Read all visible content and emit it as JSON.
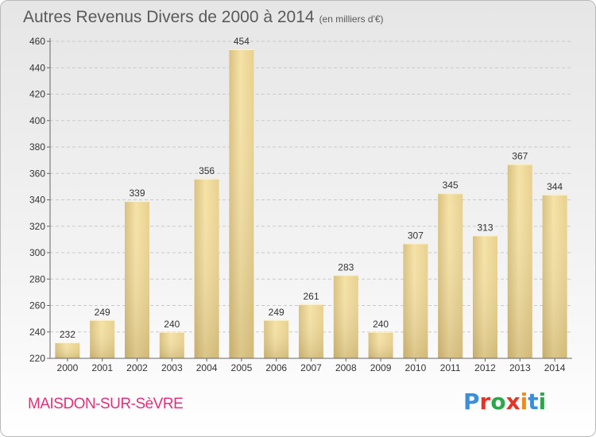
{
  "header": {
    "title": "Autres Revenus Divers de 2000 à 2014",
    "unit": "(en milliers d'€)"
  },
  "footer": {
    "city": "MAISDON-SUR-SèVRE",
    "logo": "Proxiti"
  },
  "colors": {
    "bar_light": "#f3dfa0",
    "bar_dark": "#c8ae6c",
    "city": "#e0307a",
    "grid": "#c8c8c8"
  },
  "chart_data": {
    "type": "bar",
    "title": "Autres Revenus Divers de 2000 à 2014",
    "subtitle": "(en milliers d'€)",
    "categories": [
      "2000",
      "2001",
      "2002",
      "2003",
      "2004",
      "2005",
      "2006",
      "2007",
      "2008",
      "2009",
      "2010",
      "2011",
      "2012",
      "2013",
      "2014"
    ],
    "values": [
      232,
      249,
      339,
      240,
      356,
      454,
      249,
      261,
      283,
      240,
      307,
      345,
      313,
      367,
      344
    ],
    "ylim": [
      220,
      460
    ],
    "yticks": [
      220,
      240,
      260,
      280,
      300,
      320,
      340,
      360,
      380,
      400,
      420,
      440,
      460
    ],
    "grid": true,
    "data_labels": true
  }
}
